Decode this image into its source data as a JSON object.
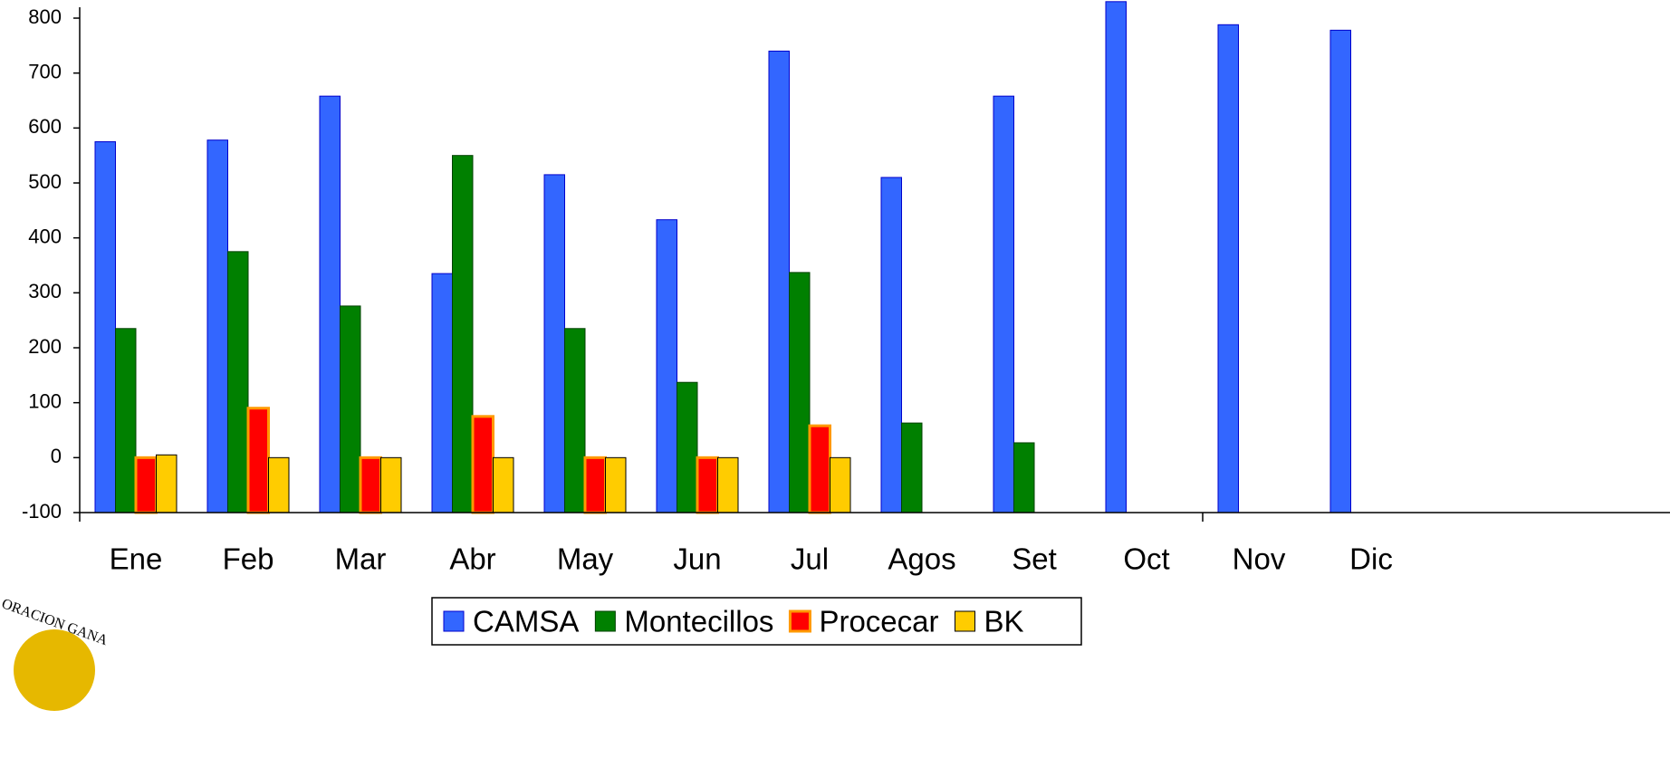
{
  "chart_data": {
    "type": "bar",
    "categories": [
      "Ene",
      "Feb",
      "Mar",
      "Abr",
      "May",
      "Jun",
      "Jul",
      "Agos",
      "Set",
      "Oct",
      "Nov",
      "Dic"
    ],
    "series": [
      {
        "name": "CAMSA",
        "color": "#3366ff",
        "stroke": "#0000cc",
        "values": [
          575,
          578,
          658,
          335,
          515,
          433,
          740,
          510,
          658,
          830,
          788,
          778
        ]
      },
      {
        "name": "Montecillos",
        "color": "#008000",
        "stroke": "#004000",
        "values": [
          235,
          375,
          276,
          550,
          235,
          137,
          337,
          63,
          27,
          null,
          null,
          null
        ]
      },
      {
        "name": "Procecar",
        "color": "#ff0000",
        "stroke": "#ff9900",
        "values": [
          0,
          90,
          0,
          75,
          0,
          0,
          58,
          null,
          null,
          null,
          null,
          null
        ]
      },
      {
        "name": "BK",
        "color": "#ffcc00",
        "stroke": "#000000",
        "values": [
          5,
          0,
          0,
          0,
          0,
          0,
          0,
          null,
          null,
          null,
          null,
          null
        ]
      }
    ],
    "ylim": [
      -100,
      833
    ],
    "yticks": [
      -100,
      0,
      100,
      200,
      300,
      400,
      500,
      600,
      700,
      800
    ],
    "grid": false,
    "legend": "bottom",
    "logo_text": "ORACION GANA"
  }
}
